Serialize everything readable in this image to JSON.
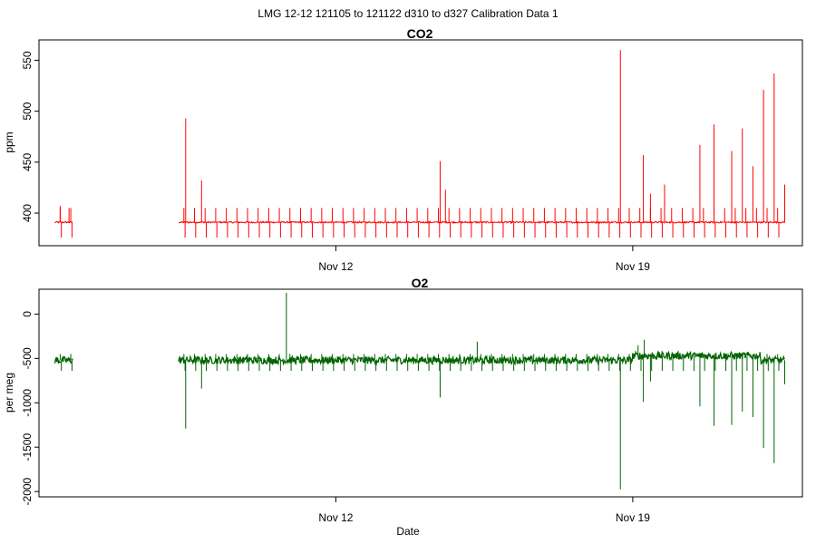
{
  "figure_title": "LMG   12-12    121105 to 121122    d310 to d327   Calibration Data 1",
  "colors": {
    "co2": "#ff0000",
    "o2": "#006400",
    "axis": "#000000"
  },
  "chart_data": [
    {
      "type": "line",
      "title": "CO2",
      "xlabel": "",
      "ylabel": "ppm",
      "x_axis_kind": "date",
      "xlim": [
        "2012-11-05",
        "2012-11-23"
      ],
      "ylim": [
        368,
        570
      ],
      "y_ticks": [
        400,
        450,
        500,
        550
      ],
      "x_ticks": [
        {
          "date": "2012-11-12",
          "label": "Nov 12"
        },
        {
          "date": "2012-11-19",
          "label": "Nov 19"
        }
      ],
      "baseline": 391,
      "series": [
        {
          "color": "#ff0000",
          "segments": [
            [
              "2012-11-05T09:00",
              "2012-11-05T19:00"
            ],
            [
              "2012-11-08T07:00",
              "2012-11-22T14:00"
            ]
          ],
          "spike_interval_hours": 6,
          "spike_up_value": 405,
          "spike_down_value": 376,
          "peaks": [
            {
              "t": "2012-11-05T12:00",
              "y": 407
            },
            {
              "t": "2012-11-05T17:00",
              "y": 405
            },
            {
              "t": "2012-11-08T11:00",
              "y": 493
            },
            {
              "t": "2012-11-08T20:00",
              "y": 432
            },
            {
              "t": "2012-11-14T11:00",
              "y": 451
            },
            {
              "t": "2012-11-14T14:00",
              "y": 423
            },
            {
              "t": "2012-11-18T17:00",
              "y": 560
            },
            {
              "t": "2012-11-19T06:00",
              "y": 457
            },
            {
              "t": "2012-11-19T10:00",
              "y": 419
            },
            {
              "t": "2012-11-19T18:00",
              "y": 428
            },
            {
              "t": "2012-11-20T14:00",
              "y": 467
            },
            {
              "t": "2012-11-20T22:00",
              "y": 487
            },
            {
              "t": "2012-11-21T08:00",
              "y": 461
            },
            {
              "t": "2012-11-21T14:00",
              "y": 483
            },
            {
              "t": "2012-11-21T20:00",
              "y": 446
            },
            {
              "t": "2012-11-22T02:00",
              "y": 521
            },
            {
              "t": "2012-11-22T08:00",
              "y": 537
            },
            {
              "t": "2012-11-22T14:00",
              "y": 428
            }
          ]
        }
      ]
    },
    {
      "type": "line",
      "title": "O2",
      "xlabel": "Date",
      "ylabel": "per meg",
      "x_axis_kind": "date",
      "xlim": [
        "2012-11-05",
        "2012-11-23"
      ],
      "ylim": [
        -2060,
        280
      ],
      "y_ticks": [
        0,
        -500,
        -1000,
        -1500,
        -2000
      ],
      "x_ticks": [
        {
          "date": "2012-11-12",
          "label": "Nov 12"
        },
        {
          "date": "2012-11-19",
          "label": "Nov 19"
        }
      ],
      "baseline": -520,
      "series": [
        {
          "color": "#006400",
          "segments": [
            [
              "2012-11-05T09:00",
              "2012-11-05T19:00"
            ],
            [
              "2012-11-08T07:00",
              "2012-11-22T14:00"
            ]
          ],
          "spike_interval_hours": 6,
          "spike_up_value": -450,
          "spike_down_value": -640,
          "peaks": [
            {
              "t": "2012-11-08T11:00",
              "y": -1290
            },
            {
              "t": "2012-11-08T20:00",
              "y": -840
            },
            {
              "t": "2012-11-10T20:00",
              "y": 240
            },
            {
              "t": "2012-11-14T11:00",
              "y": -940
            },
            {
              "t": "2012-11-15T08:00",
              "y": -310
            },
            {
              "t": "2012-11-18T17:00",
              "y": -1975
            },
            {
              "t": "2012-11-19T06:00",
              "y": -990
            },
            {
              "t": "2012-11-19T03:00",
              "y": -350
            },
            {
              "t": "2012-11-19T06:30",
              "y": -290
            },
            {
              "t": "2012-11-19T10:00",
              "y": -760
            },
            {
              "t": "2012-11-20T14:00",
              "y": -1040
            },
            {
              "t": "2012-11-20T22:00",
              "y": -1260
            },
            {
              "t": "2012-11-21T08:00",
              "y": -1250
            },
            {
              "t": "2012-11-21T14:00",
              "y": -1100
            },
            {
              "t": "2012-11-21T20:00",
              "y": -1160
            },
            {
              "t": "2012-11-22T02:00",
              "y": -1510
            },
            {
              "t": "2012-11-22T08:00",
              "y": -1680
            },
            {
              "t": "2012-11-22T14:00",
              "y": -790
            }
          ],
          "level_shift": {
            "from": "2012-11-19T00:00",
            "to": "2012-11-22T00:00",
            "y": -470
          }
        }
      ]
    }
  ]
}
